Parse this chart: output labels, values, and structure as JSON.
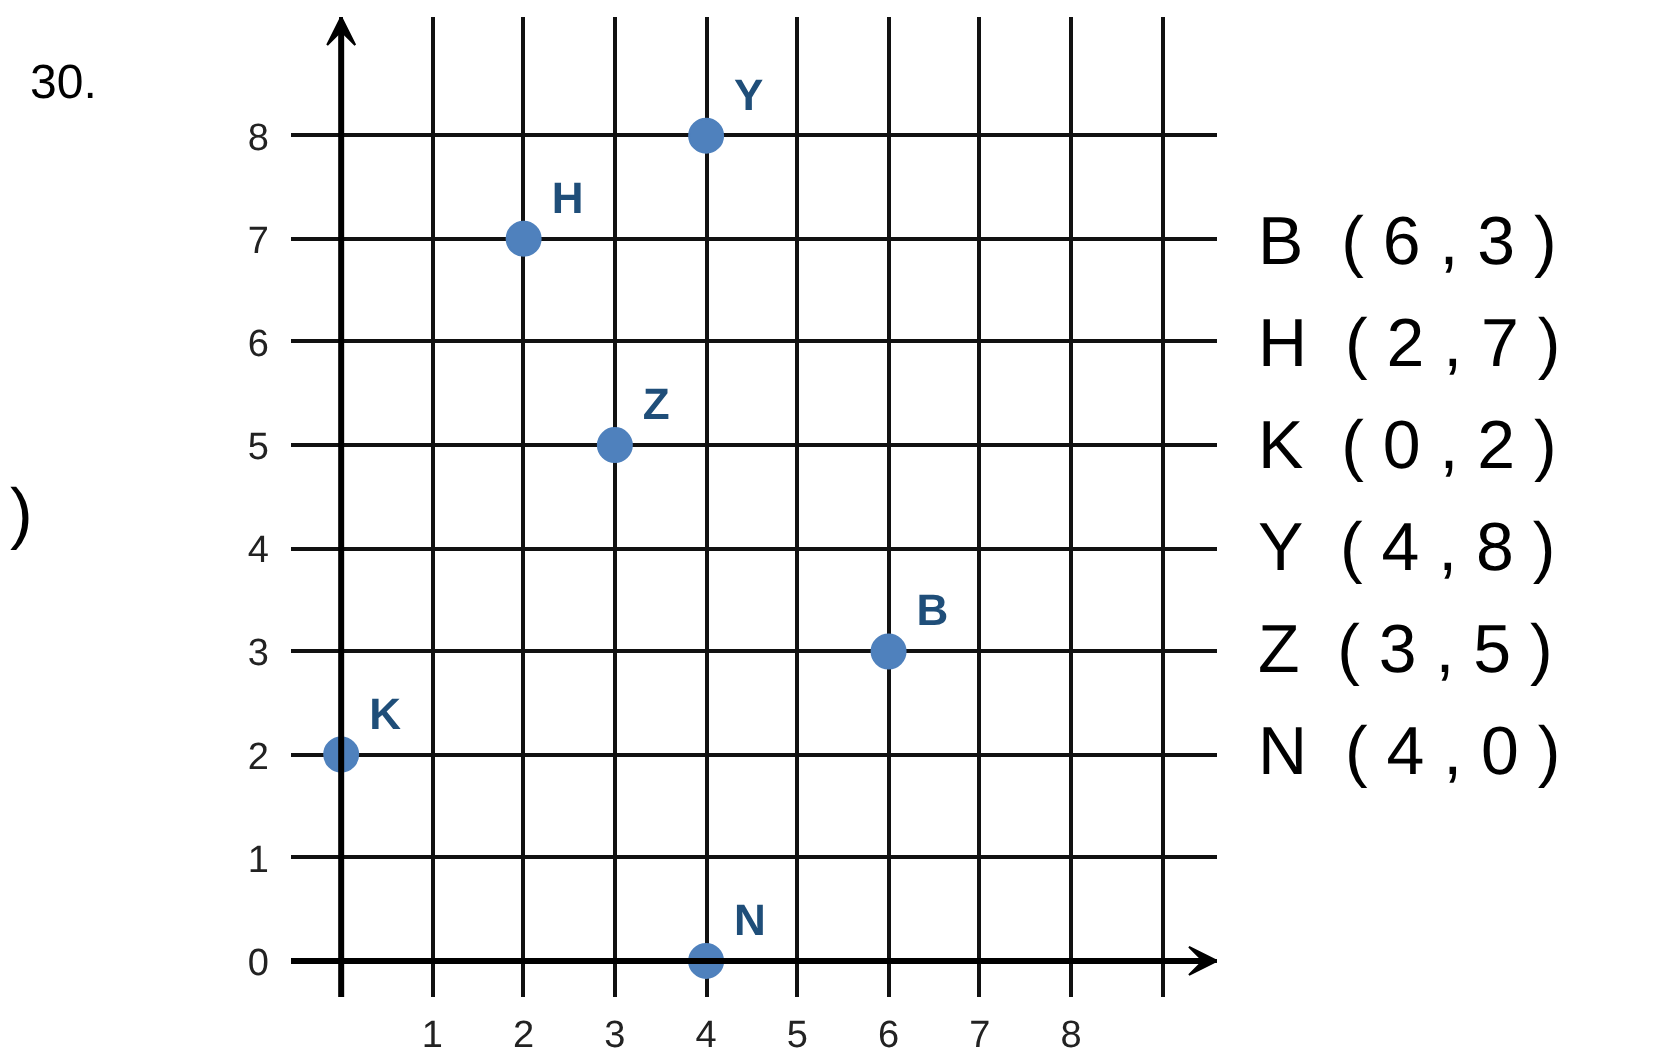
{
  "chart_data": {
    "type": "scatter",
    "x": [
      4,
      2,
      3,
      6,
      0,
      4
    ],
    "values": [
      8,
      7,
      5,
      3,
      2,
      0
    ],
    "value_labels": [
      "Y",
      "H",
      "Z",
      "B",
      "K",
      "N"
    ],
    "color": "#4f81bd",
    "marker": "circle",
    "xlim": [
      -0.55,
      9.6
    ],
    "ylim": [
      -0.35,
      9.15
    ],
    "xticks": [
      1,
      2,
      3,
      4,
      5,
      6,
      7,
      8
    ],
    "yticks": [
      0,
      1,
      2,
      3,
      4,
      5,
      6,
      7,
      8
    ],
    "grid": true,
    "annotations": [
      "30.",
      ")",
      "B  ( 6 , 3 )",
      "H  ( 2 , 7 )",
      "K  ( 0 , 2 )",
      "Y  ( 4 , 8 )",
      "Z  ( 3 , 5 )",
      "N  ( 4 , 0 )"
    ]
  }
}
